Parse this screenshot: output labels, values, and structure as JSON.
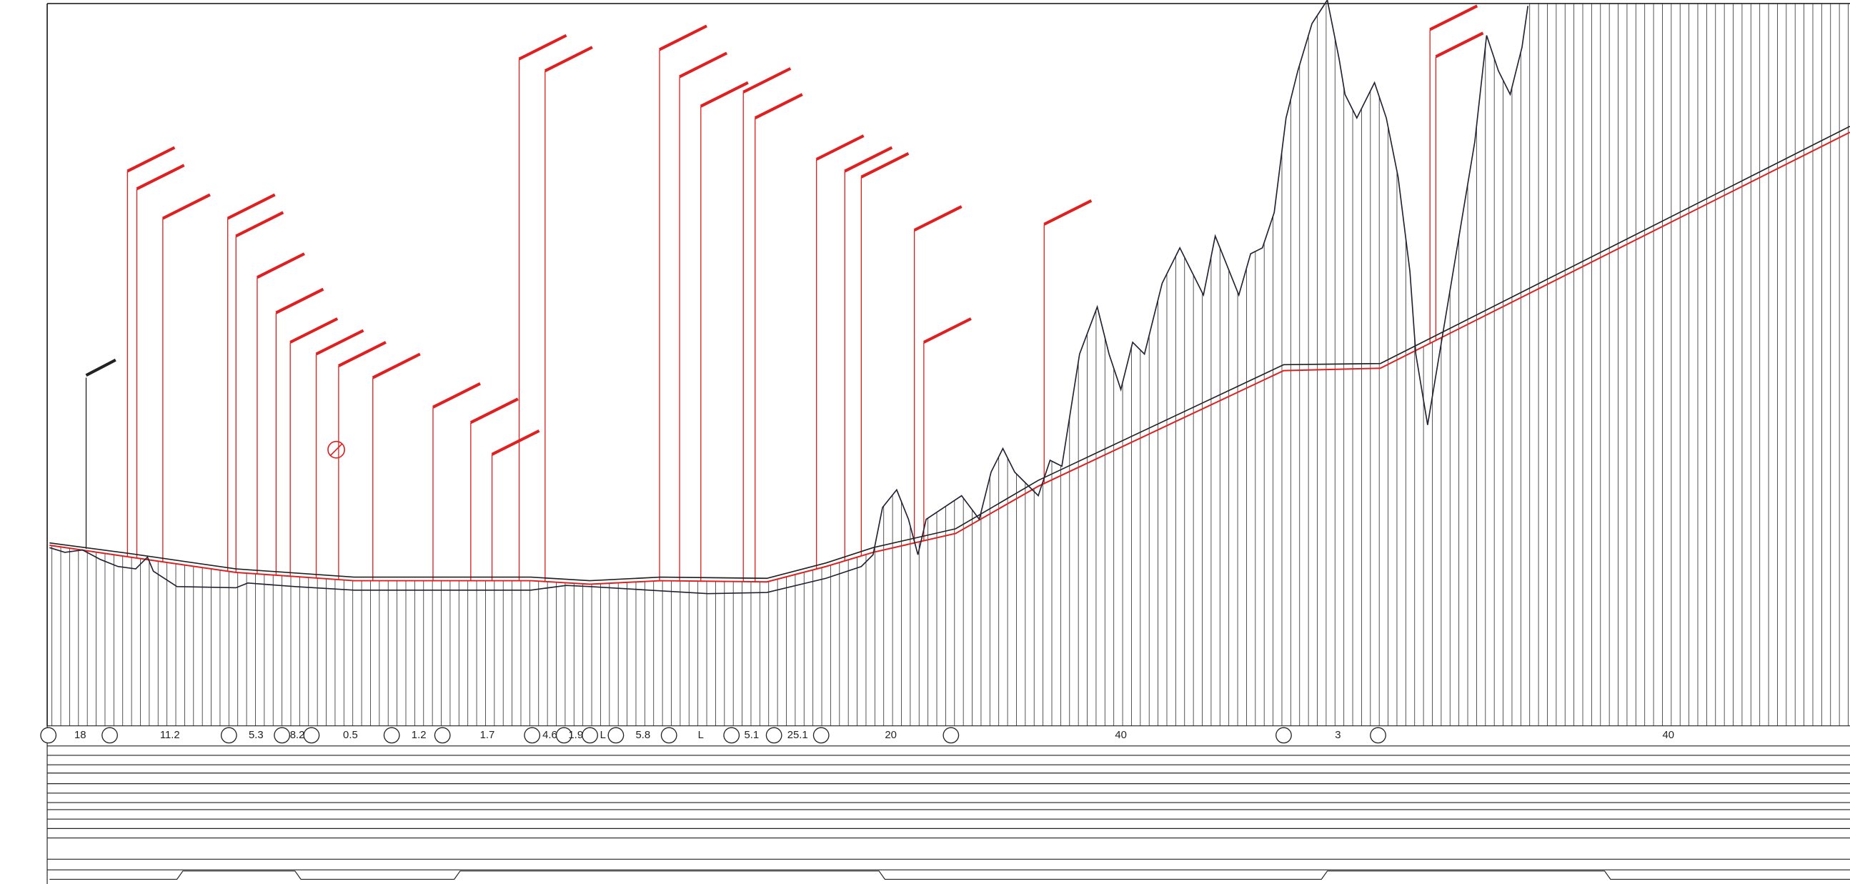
{
  "segments": {
    "labels": [
      "18",
      "11.2",
      "5.3",
      "8.2",
      "0.5",
      "1.2",
      "1.7",
      "4.6",
      "1.9",
      "L",
      "5.8",
      "L",
      "5.1",
      "25.1",
      "20",
      "40",
      "3",
      "40"
    ]
  }
}
